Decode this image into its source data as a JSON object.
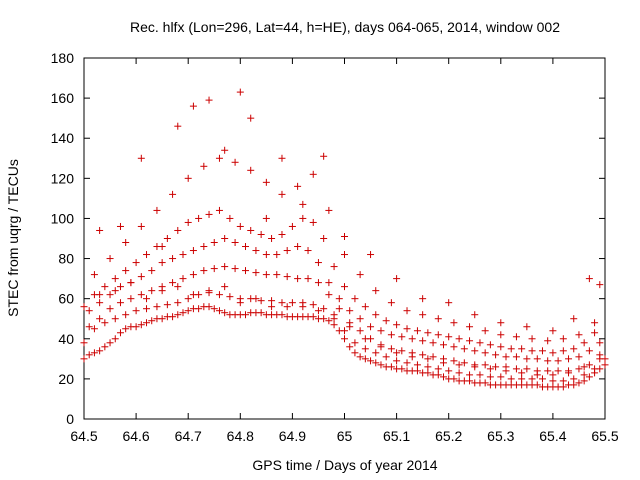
{
  "chart_data": {
    "type": "scatter",
    "title": "Rec. hlfx (Lon=296, Lat=44, h=HE), days 064-065, 2014, window 002",
    "xlabel": "GPS time / Days of year 2014",
    "ylabel": "STEC from uqrg / TECUs",
    "xlim": [
      64.5,
      65.5
    ],
    "ylim": [
      0,
      180
    ],
    "xticks": [
      64.5,
      64.6,
      64.7,
      64.8,
      64.9,
      65,
      65.1,
      65.2,
      65.3,
      65.4,
      65.5
    ],
    "xtick_labels": [
      "64.5",
      "64.6",
      "64.7",
      "64.8",
      "64.9",
      "65",
      "65.1",
      "65.2",
      "65.3",
      "65.4",
      "65.5"
    ],
    "yticks": [
      0,
      20,
      40,
      60,
      80,
      100,
      120,
      140,
      160,
      180
    ],
    "ytick_labels": [
      "0",
      "20",
      "40",
      "60",
      "80",
      "100",
      "120",
      "140",
      "160",
      "180"
    ],
    "grid": false,
    "marker": "plus",
    "color": "#cc0000",
    "series": [
      {
        "x": [
          64.5,
          64.51,
          64.52,
          64.53,
          64.54,
          64.55,
          64.56,
          64.57,
          64.58,
          64.59,
          64.6,
          64.61,
          64.62,
          64.63,
          64.64,
          64.65,
          64.66,
          64.67,
          64.68,
          64.69,
          64.7,
          64.71,
          64.72,
          64.73,
          64.74,
          64.75,
          64.76,
          64.77,
          64.78,
          64.79,
          64.8,
          64.81,
          64.82,
          64.83,
          64.84,
          64.85,
          64.86,
          64.87,
          64.88,
          64.89,
          64.9,
          64.91,
          64.92,
          64.93,
          64.94,
          64.95,
          64.96,
          64.97,
          64.98,
          64.99,
          65.0,
          65.01,
          65.02,
          65.03,
          65.04,
          65.05,
          65.06,
          65.07,
          65.08,
          65.09,
          65.1,
          65.11,
          65.12,
          65.13,
          65.14,
          65.15,
          65.16,
          65.17,
          65.18,
          65.19,
          65.2,
          65.21,
          65.22,
          65.23,
          65.24,
          65.25,
          65.26,
          65.27,
          65.28,
          65.29,
          65.3,
          65.31,
          65.32,
          65.33,
          65.34,
          65.35,
          65.36,
          65.37,
          65.38,
          65.39,
          65.4,
          65.41,
          65.42,
          65.43,
          65.44,
          65.45,
          65.46,
          65.47,
          65.48,
          65.49,
          65.5
        ],
        "y": [
          30,
          32,
          33,
          34,
          36,
          38,
          40,
          43,
          45,
          46,
          46,
          47,
          48,
          49,
          50,
          50,
          51,
          51,
          52,
          53,
          54,
          55,
          55,
          56,
          56,
          55,
          54,
          53,
          52,
          52,
          52,
          52,
          53,
          53,
          53,
          52,
          52,
          52,
          52,
          51,
          51,
          51,
          51,
          51,
          51,
          50,
          50,
          49,
          47,
          44,
          40,
          36,
          33,
          31,
          30,
          29,
          28,
          27,
          26,
          26,
          25,
          25,
          24,
          24,
          24,
          23,
          23,
          22,
          22,
          21,
          20,
          20,
          19,
          19,
          19,
          18,
          18,
          18,
          17,
          17,
          17,
          17,
          17,
          17,
          17,
          17,
          17,
          17,
          16,
          16,
          16,
          16,
          16,
          17,
          17,
          18,
          19,
          21,
          23,
          25,
          27
        ]
      },
      {
        "x": [
          64.5,
          64.52,
          64.54,
          64.56,
          64.58,
          64.6,
          64.62,
          64.64,
          64.66,
          64.68,
          64.7,
          64.72,
          64.74,
          64.76,
          64.78,
          64.8,
          64.82,
          64.84,
          64.86,
          64.88,
          64.9,
          64.92,
          64.94,
          64.96,
          64.98,
          65.0,
          65.02,
          65.04,
          65.06,
          65.08,
          65.1,
          65.12,
          65.14,
          65.16,
          65.18,
          65.2,
          65.22,
          65.24,
          65.26,
          65.28,
          65.3,
          65.32,
          65.34,
          65.36,
          65.38,
          65.4,
          65.42,
          65.44,
          65.46,
          65.48,
          65.5
        ],
        "y": [
          38,
          45,
          48,
          50,
          52,
          54,
          55,
          56,
          57,
          58,
          60,
          62,
          63,
          62,
          61,
          60,
          60,
          59,
          59,
          58,
          58,
          58,
          57,
          55,
          50,
          44,
          38,
          35,
          33,
          31,
          29,
          28,
          27,
          26,
          25,
          24,
          23,
          22,
          22,
          21,
          21,
          20,
          20,
          20,
          20,
          19,
          19,
          20,
          22,
          25,
          30
        ]
      },
      {
        "x": [
          64.51,
          64.53,
          64.55,
          64.57,
          64.59,
          64.61,
          64.63,
          64.65,
          64.67,
          64.69,
          64.71,
          64.73,
          64.75,
          64.77,
          64.79,
          64.81,
          64.83,
          64.85,
          64.87,
          64.89,
          64.91,
          64.93,
          64.95,
          64.97,
          64.99,
          65.01,
          65.03,
          65.05,
          65.07,
          65.09,
          65.11,
          65.13,
          65.15,
          65.17,
          65.19,
          65.21,
          65.23,
          65.25,
          65.27,
          65.29,
          65.31,
          65.33,
          65.35,
          65.37,
          65.39,
          65.41,
          65.43,
          65.45,
          65.47,
          65.49
        ],
        "y": [
          46,
          50,
          55,
          58,
          60,
          62,
          64,
          66,
          68,
          70,
          72,
          74,
          75,
          76,
          75,
          74,
          73,
          72,
          72,
          71,
          70,
          70,
          68,
          62,
          55,
          48,
          44,
          40,
          37,
          35,
          34,
          33,
          32,
          31,
          30,
          29,
          28,
          27,
          27,
          26,
          26,
          25,
          25,
          24,
          24,
          24,
          24,
          25,
          27,
          32
        ]
      },
      {
        "x": [
          64.51,
          64.53,
          64.55,
          64.57,
          64.59,
          64.61,
          64.63,
          64.65,
          64.67,
          64.69,
          64.71,
          64.73,
          64.75,
          64.77,
          64.79,
          64.81,
          64.83,
          64.85,
          64.87,
          64.89,
          64.91,
          64.93,
          64.95,
          64.97,
          64.99,
          65.01,
          65.03,
          65.05,
          65.07,
          65.09,
          65.11,
          65.13,
          65.15,
          65.17,
          65.19,
          65.21,
          65.23,
          65.25,
          65.27,
          65.29,
          65.31,
          65.33,
          65.35,
          65.37,
          65.39,
          65.41,
          65.43,
          65.45,
          65.47,
          65.49
        ],
        "y": [
          54,
          58,
          62,
          66,
          68,
          71,
          74,
          78,
          80,
          82,
          84,
          86,
          88,
          90,
          88,
          86,
          84,
          82,
          82,
          84,
          86,
          84,
          78,
          68,
          60,
          54,
          50,
          46,
          44,
          42,
          41,
          40,
          39,
          38,
          37,
          36,
          35,
          34,
          33,
          32,
          31,
          31,
          30,
          30,
          29,
          29,
          30,
          31,
          34,
          38
        ]
      },
      {
        "x": [
          64.52,
          64.54,
          64.56,
          64.58,
          64.6,
          64.62,
          64.64,
          64.66,
          64.68,
          64.7,
          64.72,
          64.74,
          64.76,
          64.78,
          64.8,
          64.82,
          64.84,
          64.86,
          64.88,
          64.9,
          64.92,
          64.94,
          64.96,
          64.98,
          65.0,
          65.02,
          65.04,
          65.06,
          65.08,
          65.1,
          65.12,
          65.14,
          65.16,
          65.18,
          65.2,
          65.22,
          65.24,
          65.26,
          65.28,
          65.3,
          65.32,
          65.34,
          65.36,
          65.38,
          65.4,
          65.42,
          65.44,
          65.46,
          65.48
        ],
        "y": [
          62,
          66,
          70,
          74,
          78,
          82,
          86,
          90,
          94,
          98,
          100,
          102,
          104,
          100,
          96,
          94,
          92,
          90,
          92,
          96,
          100,
          98,
          90,
          76,
          66,
          60,
          56,
          52,
          49,
          47,
          45,
          44,
          43,
          42,
          41,
          40,
          39,
          38,
          37,
          36,
          35,
          35,
          34,
          34,
          33,
          34,
          35,
          38,
          43
        ]
      },
      {
        "x": [
          64.52,
          64.55,
          64.58,
          64.61,
          64.64,
          64.67,
          64.7,
          64.73,
          64.76,
          64.79,
          64.82,
          64.85,
          64.88,
          64.91,
          64.94,
          64.97,
          65.0,
          65.03,
          65.06,
          65.09,
          65.12,
          65.15,
          65.18,
          65.21,
          65.24,
          65.27,
          65.3,
          65.33,
          65.36,
          65.39,
          65.42,
          65.45,
          65.48
        ],
        "y": [
          72,
          80,
          88,
          96,
          104,
          112,
          120,
          126,
          130,
          128,
          124,
          118,
          112,
          116,
          122,
          104,
          82,
          72,
          64,
          58,
          54,
          52,
          50,
          48,
          46,
          44,
          42,
          41,
          40,
          39,
          40,
          42,
          48
        ]
      },
      {
        "x": [
          64.53,
          64.57,
          64.61,
          64.65,
          64.68,
          64.71,
          64.74,
          64.77,
          64.8,
          64.82,
          64.85,
          64.88,
          64.92,
          64.96,
          65.0,
          65.05,
          65.1,
          65.15,
          65.2,
          65.25,
          65.3,
          65.35,
          65.4,
          65.44,
          65.47,
          65.49
        ],
        "y": [
          94,
          96,
          130,
          86,
          146,
          156,
          159,
          134,
          163,
          150,
          100,
          130,
          107,
          131,
          91,
          82,
          70,
          60,
          58,
          52,
          48,
          46,
          44,
          50,
          70,
          67
        ]
      },
      {
        "x": [
          64.5,
          64.53,
          64.56,
          64.59,
          64.62,
          64.65,
          64.68,
          64.71,
          64.74,
          64.77,
          64.8,
          64.83,
          64.86,
          64.89,
          64.92,
          64.95,
          64.98,
          65.01,
          65.04,
          65.07,
          65.1,
          65.13,
          65.16,
          65.19,
          65.22,
          65.25,
          65.28,
          65.31,
          65.34,
          65.37,
          65.4,
          65.43,
          65.46,
          65.49
        ],
        "y": [
          56,
          62,
          64,
          68,
          60,
          64,
          66,
          62,
          64,
          66,
          58,
          60,
          56,
          56,
          56,
          54,
          52,
          46,
          40,
          36,
          33,
          31,
          30,
          28,
          27,
          26,
          25,
          24,
          23,
          22,
          22,
          23,
          26,
          30
        ]
      }
    ]
  }
}
